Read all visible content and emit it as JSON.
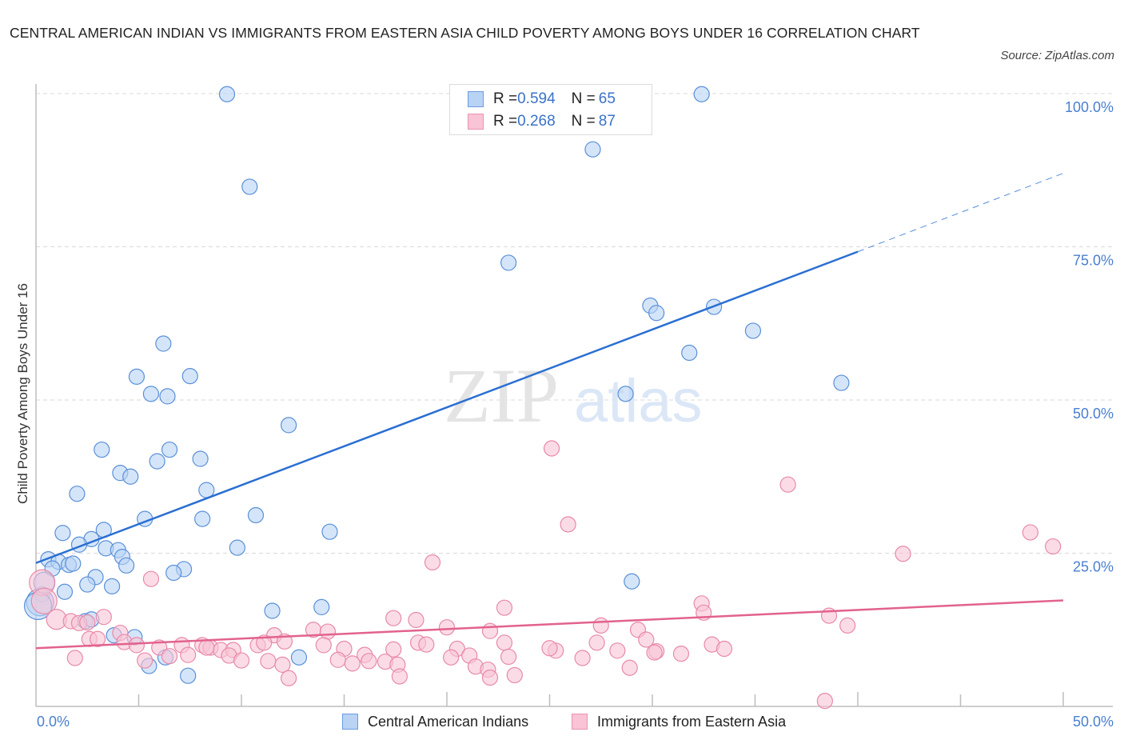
{
  "title": "CENTRAL AMERICAN INDIAN VS IMMIGRANTS FROM EASTERN ASIA CHILD POVERTY AMONG BOYS UNDER 16 CORRELATION CHART",
  "source": "Source: ZipAtlas.com",
  "watermark": {
    "part1": "ZIP",
    "part2": "atlas"
  },
  "colors": {
    "blue_fill": "#b9d3f5",
    "blue_stroke": "#5a90d8",
    "blue_line": "#2a6fd2",
    "pink_fill": "#f9c4d5",
    "pink_stroke": "#e88aa8",
    "pink_line": "#e2628e",
    "tick_text": "#4a7fd0"
  },
  "legend_top": [
    {
      "r_label": "R = ",
      "r_value": "0.594",
      "n_label": "N = ",
      "n_value": "65"
    },
    {
      "r_label": "R = ",
      "r_value": "0.268",
      "n_label": "N = ",
      "n_value": "87"
    }
  ],
  "legend_bottom": [
    "Central American Indians",
    "Immigrants from Eastern Asia"
  ],
  "chart_data": {
    "type": "scatter",
    "title": "CENTRAL AMERICAN INDIAN VS IMMIGRANTS FROM EASTERN ASIA CHILD POVERTY AMONG BOYS UNDER 16 CORRELATION CHART",
    "xlabel": "",
    "ylabel": "Child Poverty Among Boys Under 16",
    "xlim": [
      0,
      50
    ],
    "ylim": [
      0,
      100
    ],
    "x_tick_labels": [
      "0.0%",
      "50.0%"
    ],
    "y_tick_labels": [
      "100.0%",
      "75.0%",
      "50.0%",
      "25.0%"
    ],
    "y_ticks": [
      100,
      75,
      50,
      25
    ],
    "grid": true,
    "legend_position": "top-center",
    "series": [
      {
        "name": "Central American Indians",
        "R": 0.594,
        "N": 65,
        "trend": {
          "x0": 0,
          "y0": 23.4,
          "x1": 40.0,
          "y1": 74.2,
          "dashed_to_x": 50,
          "dashed_to_y": 87.0
        },
        "points": [
          [
            9.3,
            99.9
          ],
          [
            32.4,
            99.9
          ],
          [
            27.1,
            90.9
          ],
          [
            10.4,
            84.8
          ],
          [
            23.0,
            72.4
          ],
          [
            29.9,
            65.4
          ],
          [
            30.2,
            64.2
          ],
          [
            33.0,
            65.2
          ],
          [
            34.9,
            61.3
          ],
          [
            31.8,
            57.7
          ],
          [
            39.2,
            52.8
          ],
          [
            28.7,
            51.0
          ],
          [
            6.2,
            59.2
          ],
          [
            4.9,
            53.8
          ],
          [
            7.5,
            53.9
          ],
          [
            5.6,
            51.0
          ],
          [
            6.4,
            50.6
          ],
          [
            12.3,
            45.9
          ],
          [
            3.2,
            41.9
          ],
          [
            6.5,
            41.9
          ],
          [
            5.9,
            40.0
          ],
          [
            8.0,
            40.4
          ],
          [
            4.1,
            38.1
          ],
          [
            4.6,
            37.5
          ],
          [
            2.0,
            34.7
          ],
          [
            8.3,
            35.3
          ],
          [
            5.3,
            30.6
          ],
          [
            8.1,
            30.6
          ],
          [
            10.7,
            31.2
          ],
          [
            14.3,
            28.5
          ],
          [
            1.3,
            28.3
          ],
          [
            2.7,
            27.3
          ],
          [
            3.3,
            28.8
          ],
          [
            2.1,
            26.4
          ],
          [
            3.4,
            25.8
          ],
          [
            4.0,
            25.5
          ],
          [
            4.2,
            24.4
          ],
          [
            9.8,
            25.9
          ],
          [
            0.6,
            24.0
          ],
          [
            1.1,
            23.6
          ],
          [
            0.8,
            22.5
          ],
          [
            1.6,
            23.1
          ],
          [
            1.8,
            23.3
          ],
          [
            4.4,
            23.0
          ],
          [
            7.2,
            22.4
          ],
          [
            6.7,
            21.8
          ],
          [
            2.9,
            21.1
          ],
          [
            2.5,
            19.9
          ],
          [
            3.7,
            19.6
          ],
          [
            29.0,
            20.4
          ],
          [
            1.4,
            18.7
          ],
          [
            0.3,
            18.3
          ],
          [
            0.2,
            17.0
          ],
          [
            0.1,
            16.4
          ],
          [
            11.5,
            15.6
          ],
          [
            13.9,
            16.2
          ],
          [
            2.4,
            13.9
          ],
          [
            2.7,
            14.2
          ],
          [
            3.8,
            11.6
          ],
          [
            4.8,
            11.3
          ],
          [
            6.3,
            8.0
          ],
          [
            12.8,
            8.0
          ],
          [
            5.5,
            6.6
          ],
          [
            7.4,
            5.0
          ],
          [
            0.4,
            20.2
          ]
        ]
      },
      {
        "name": "Immigrants from Eastern Asia",
        "R": 0.268,
        "N": 87,
        "trend": {
          "x0": 0,
          "y0": 9.5,
          "x1": 50,
          "y1": 17.3
        },
        "points": [
          [
            25.1,
            42.1
          ],
          [
            36.6,
            36.2
          ],
          [
            25.9,
            29.7
          ],
          [
            48.4,
            28.4
          ],
          [
            49.5,
            26.1
          ],
          [
            42.2,
            24.9
          ],
          [
            19.3,
            23.5
          ],
          [
            5.6,
            20.8
          ],
          [
            0.3,
            20.2
          ],
          [
            0.4,
            17.2
          ],
          [
            22.8,
            16.1
          ],
          [
            32.4,
            16.8
          ],
          [
            32.5,
            15.3
          ],
          [
            38.6,
            14.8
          ],
          [
            1.0,
            14.2
          ],
          [
            1.7,
            13.9
          ],
          [
            2.1,
            13.6
          ],
          [
            2.5,
            13.7
          ],
          [
            3.3,
            14.6
          ],
          [
            17.4,
            14.4
          ],
          [
            18.5,
            14.1
          ],
          [
            39.5,
            13.2
          ],
          [
            27.5,
            13.2
          ],
          [
            20.0,
            12.9
          ],
          [
            22.1,
            12.3
          ],
          [
            29.3,
            12.5
          ],
          [
            13.5,
            12.5
          ],
          [
            14.2,
            12.2
          ],
          [
            11.6,
            11.6
          ],
          [
            4.1,
            12.0
          ],
          [
            2.6,
            11.0
          ],
          [
            3.0,
            11.0
          ],
          [
            4.3,
            10.5
          ],
          [
            4.9,
            10.0
          ],
          [
            6.0,
            9.6
          ],
          [
            7.1,
            10.0
          ],
          [
            8.1,
            10.0
          ],
          [
            8.5,
            9.6
          ],
          [
            9.0,
            9.2
          ],
          [
            9.6,
            9.2
          ],
          [
            10.8,
            10.0
          ],
          [
            11.1,
            10.4
          ],
          [
            12.1,
            10.6
          ],
          [
            14.0,
            10.0
          ],
          [
            15.0,
            9.4
          ],
          [
            16.0,
            8.4
          ],
          [
            17.4,
            9.3
          ],
          [
            18.6,
            10.4
          ],
          [
            19.0,
            10.1
          ],
          [
            20.5,
            9.4
          ],
          [
            20.2,
            8.0
          ],
          [
            21.1,
            8.3
          ],
          [
            22.8,
            10.4
          ],
          [
            25.3,
            9.1
          ],
          [
            25.0,
            9.5
          ],
          [
            27.3,
            10.4
          ],
          [
            28.3,
            9.1
          ],
          [
            29.7,
            10.9
          ],
          [
            30.2,
            9.0
          ],
          [
            31.4,
            8.6
          ],
          [
            32.9,
            10.1
          ],
          [
            33.5,
            9.4
          ],
          [
            5.3,
            7.5
          ],
          [
            6.5,
            8.2
          ],
          [
            7.4,
            8.4
          ],
          [
            8.3,
            9.6
          ],
          [
            9.4,
            8.3
          ],
          [
            10.0,
            7.5
          ],
          [
            11.3,
            7.4
          ],
          [
            12.0,
            6.8
          ],
          [
            14.7,
            7.6
          ],
          [
            15.4,
            7.0
          ],
          [
            16.2,
            7.4
          ],
          [
            17.0,
            7.3
          ],
          [
            17.6,
            6.8
          ],
          [
            21.4,
            6.5
          ],
          [
            22.0,
            6.0
          ],
          [
            23.0,
            8.1
          ],
          [
            23.3,
            5.1
          ],
          [
            22.1,
            4.7
          ],
          [
            12.3,
            4.6
          ],
          [
            17.7,
            4.9
          ],
          [
            26.6,
            7.9
          ],
          [
            28.9,
            6.3
          ],
          [
            30.1,
            8.8
          ],
          [
            38.4,
            0.9
          ],
          [
            1.9,
            7.9
          ]
        ]
      }
    ]
  }
}
